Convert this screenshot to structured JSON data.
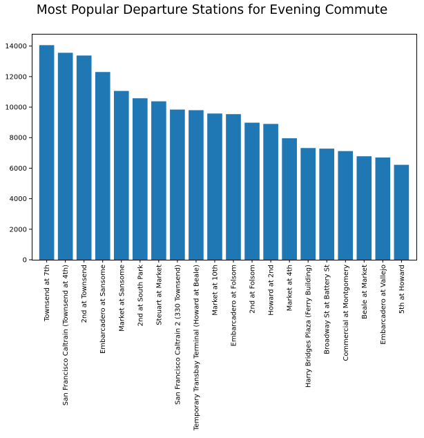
{
  "chart_data": {
    "type": "bar",
    "title": "Most Popular Departure Stations for Evening Commute",
    "xlabel": "",
    "ylabel": "",
    "ylim": [
      0,
      14800
    ],
    "yticks": [
      0,
      2000,
      4000,
      6000,
      8000,
      10000,
      12000,
      14000
    ],
    "grid": false,
    "bar_color": "#1f77b4",
    "categories": [
      "Townsend at 7th",
      "San Francisco Caltrain (Townsend at 4th)",
      "2nd at Townsend",
      "Embarcadero at Sansome",
      "Market at Sansome",
      "2nd at South Park",
      "Steuart at Market",
      "San Francisco Caltrain 2 (330 Townsend)",
      "Temporary Transbay Terminal (Howard at Beale)",
      "Market at 10th",
      "Embarcadero at Folsom",
      "2nd at Folsom",
      "Howard at 2nd",
      "Market at 4th",
      "Harry Bridges Plaza (Ferry Building)",
      "Broadway St at Battery St",
      "Commercial at Montgomery",
      "Beale at Market",
      "Embarcadero at Vallejo",
      "5th at Howard"
    ],
    "values": [
      14060,
      13560,
      13380,
      12300,
      11060,
      10580,
      10380,
      9840,
      9800,
      9580,
      9540,
      8980,
      8900,
      7960,
      7320,
      7280,
      7120,
      6780,
      6700,
      6220
    ]
  }
}
